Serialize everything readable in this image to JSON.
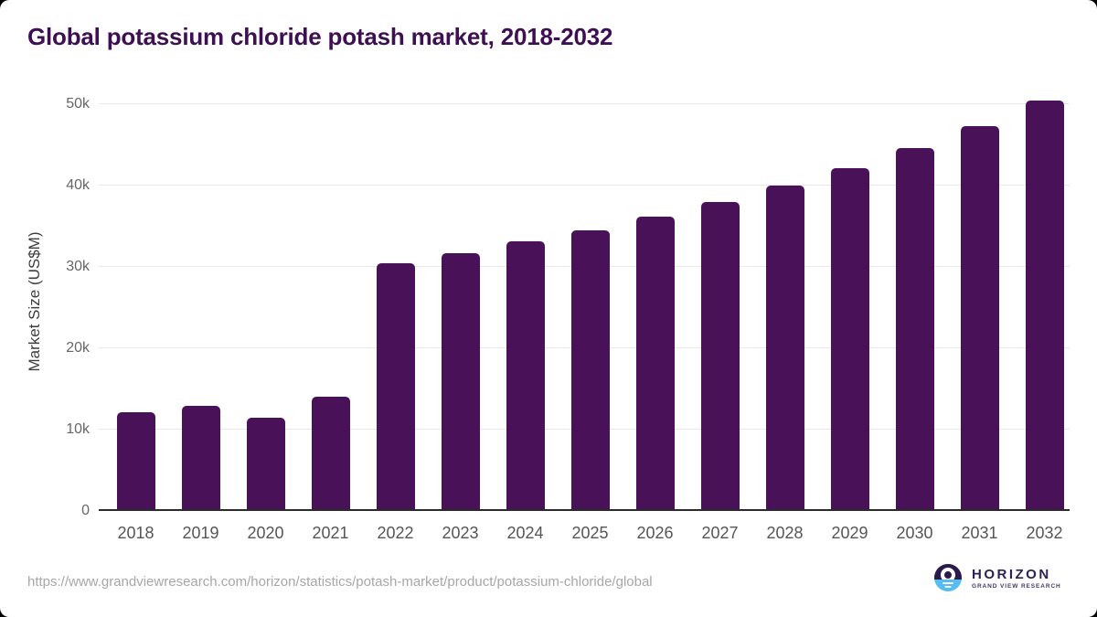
{
  "title": "Global potassium chloride potash market, 2018-2032",
  "chart_data": {
    "type": "bar",
    "title": "Global potassium chloride potash market, 2018-2032",
    "categories": [
      "2018",
      "2019",
      "2020",
      "2021",
      "2022",
      "2023",
      "2024",
      "2025",
      "2026",
      "2027",
      "2028",
      "2029",
      "2030",
      "2031",
      "2032"
    ],
    "values": [
      12100,
      12900,
      11500,
      14000,
      30400,
      31700,
      33200,
      34500,
      36200,
      38000,
      40000,
      42100,
      44600,
      47300,
      50400
    ],
    "xlabel": "",
    "ylabel": "Market Size (US$M)",
    "ylim": [
      0,
      50000
    ],
    "yticks": [
      {
        "label": "0",
        "value": 0
      },
      {
        "label": "10k",
        "value": 10000
      },
      {
        "label": "20k",
        "value": 20000
      },
      {
        "label": "30k",
        "value": 30000
      },
      {
        "label": "40k",
        "value": 40000
      },
      {
        "label": "50k",
        "value": 50000
      }
    ],
    "grid": true,
    "legend": false
  },
  "colors": {
    "bar": "#481158",
    "title": "#3e1053",
    "gridline": "#e8e8e8",
    "axis_line": "#2b2b2b",
    "logo_purple_dark": "#2b1a4e",
    "logo_blue": "#56bdf2",
    "logo_text": "#2e2156"
  },
  "footer": {
    "source_url": "https://www.grandviewresearch.com/horizon/statistics/potash-market/product/potassium-chloride/global",
    "logo": {
      "name": "HORIZON",
      "subtitle": "GRAND VIEW RESEARCH"
    }
  }
}
